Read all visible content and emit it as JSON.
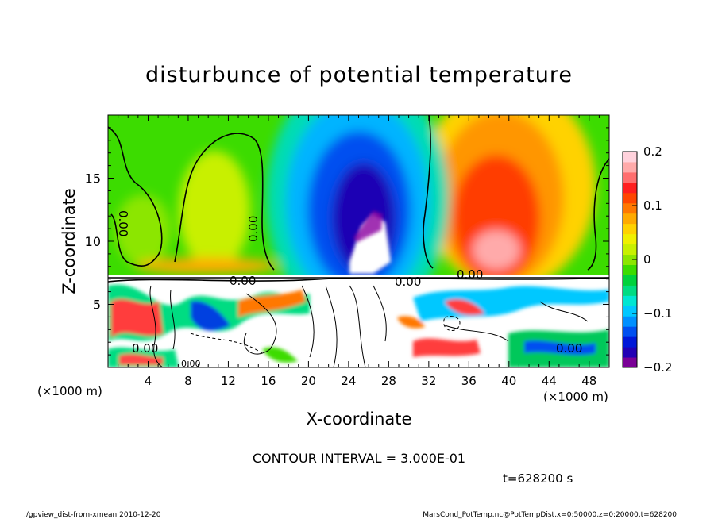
{
  "chart_data": {
    "type": "heatmap",
    "title": "disturbunce of potential temperature",
    "xlabel": "X-coordinate",
    "ylabel": "Z-coordinate",
    "x_unit_label": "(×1000 m)",
    "y_unit_label": "(×1000 m)",
    "xlim": [
      0,
      50
    ],
    "ylim": [
      0,
      20
    ],
    "x_ticks": [
      4,
      8,
      12,
      16,
      20,
      24,
      28,
      32,
      36,
      40,
      44,
      48
    ],
    "y_ticks": [
      5,
      10,
      15
    ],
    "colorbar": {
      "range": [
        -0.2,
        0.2
      ],
      "tick_values": [
        0.2,
        0.1,
        0,
        -0.1,
        -0.2
      ],
      "tick_labels": [
        "0.2",
        "0.1",
        "0",
        "−0.1",
        "−0.2"
      ],
      "colors": [
        "#7a0096",
        "#2200b4",
        "#0018d8",
        "#0050f0",
        "#0090ff",
        "#00c8ff",
        "#00e6d2",
        "#00dc82",
        "#00d23c",
        "#3cdc00",
        "#8ce600",
        "#c8f000",
        "#f0f000",
        "#ffd200",
        "#ffaa00",
        "#ff7800",
        "#ff4600",
        "#ff1e1e",
        "#ff6e6e",
        "#ffaaaa",
        "#ffd2dc"
      ]
    },
    "contour_labels": [
      "0.00",
      "0.00",
      "0.00",
      "0.00",
      "0.00",
      "0.00",
      "0.00",
      "0.00"
    ],
    "contour_interval_text": "CONTOUR INTERVAL = 3.000E-01",
    "time_text": "t=628200 s",
    "grid": false,
    "legend": "colorbar-right"
  },
  "footer": {
    "left": "./gpview_dist-from-xmean  2010-12-20",
    "right": "MarsCond_PotTemp.nc@PotTempDist,x=0:50000,z=0:20000,t=628200"
  }
}
